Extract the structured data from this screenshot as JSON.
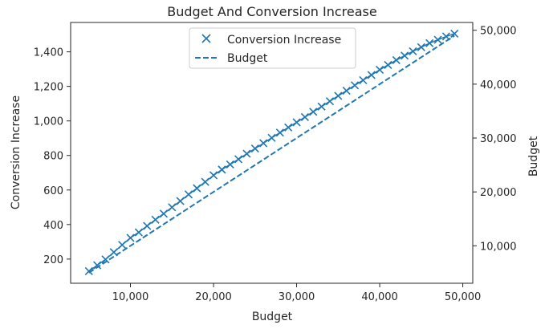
{
  "chart_data": {
    "type": "line",
    "title": "Budget And Conversion Increase",
    "xlabel": "Budget",
    "ylabel": "Conversion Increase",
    "y2label": "Budget",
    "xlim": [
      2800,
      51200
    ],
    "ylim": [
      60,
      1570
    ],
    "y2lim": [
      3050,
      51450
    ],
    "x_ticks": [
      10000,
      20000,
      30000,
      40000,
      50000
    ],
    "x_tick_labels": [
      "10,000",
      "20,000",
      "30,000",
      "40,000",
      "50,000"
    ],
    "y_ticks": [
      200,
      400,
      600,
      800,
      1000,
      1200,
      1400
    ],
    "y_tick_labels": [
      "200",
      "400",
      "600",
      "800",
      "1,000",
      "1,200",
      "1,400"
    ],
    "y2_ticks": [
      10000,
      20000,
      30000,
      40000,
      50000
    ],
    "y2_tick_labels": [
      "10,000",
      "20,000",
      "30,000",
      "40,000",
      "50,000"
    ],
    "grid": false,
    "legend_position": "top-center",
    "colors": {
      "series": "#1f77b4",
      "frame": "#262626"
    },
    "x": [
      5000,
      6000,
      7000,
      8000,
      9000,
      10000,
      11000,
      12000,
      13000,
      14000,
      15000,
      16000,
      17000,
      18000,
      19000,
      20000,
      21000,
      22000,
      23000,
      24000,
      25000,
      26000,
      27000,
      28000,
      29000,
      30000,
      31000,
      32000,
      33000,
      34000,
      35000,
      36000,
      37000,
      38000,
      39000,
      40000,
      41000,
      42000,
      43000,
      44000,
      45000,
      46000,
      47000,
      48000,
      49000
    ],
    "series": [
      {
        "name": "Conversion Increase",
        "style": "scatter",
        "marker": "x",
        "axis": "left",
        "values": [
          130,
          164,
          198,
          240,
          282,
          323,
          355,
          392,
          428,
          463,
          500,
          536,
          574,
          610,
          647,
          685,
          718,
          748,
          778,
          810,
          840,
          871,
          902,
          932,
          962,
          992,
          1022,
          1053,
          1083,
          1114,
          1145,
          1175,
          1206,
          1236,
          1266,
          1296,
          1324,
          1352,
          1378,
          1403,
          1427,
          1450,
          1470,
          1489,
          1505
        ]
      },
      {
        "name": "Budget",
        "style": "dashed-line",
        "axis": "right",
        "values": [
          5000,
          6000,
          7000,
          8000,
          9000,
          10000,
          11000,
          12000,
          13000,
          14000,
          15000,
          16000,
          17000,
          18000,
          19000,
          20000,
          21000,
          22000,
          23000,
          24000,
          25000,
          26000,
          27000,
          28000,
          29000,
          30000,
          31000,
          32000,
          33000,
          34000,
          35000,
          36000,
          37000,
          38000,
          39000,
          40000,
          41000,
          42000,
          43000,
          44000,
          45000,
          46000,
          47000,
          48000,
          49000
        ]
      }
    ]
  }
}
